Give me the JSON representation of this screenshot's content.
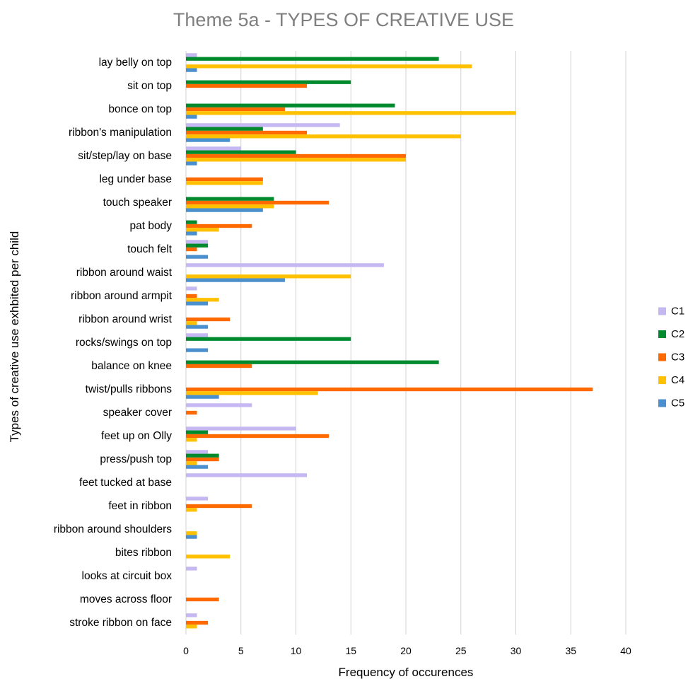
{
  "chart_data": {
    "type": "bar",
    "orientation": "horizontal",
    "title": "Theme 5a - TYPES OF CREATIVE USE",
    "xlabel": "Frequency of occurences",
    "ylabel": "Types of creative use exhbited per child",
    "xlim": [
      0,
      40
    ],
    "xticks": [
      0,
      5,
      10,
      15,
      20,
      25,
      30,
      35,
      40
    ],
    "grid": "vertical",
    "legend_position": "right",
    "categories": [
      "lay belly on top",
      "sit on top",
      "bonce on top",
      "ribbon's manipulation",
      "sit/step/lay on base",
      "leg under base",
      "touch speaker",
      "pat body",
      "touch felt",
      "ribbon around waist",
      "ribbon around armpit",
      "ribbon around wrist",
      "rocks/swings on top",
      "balance on knee",
      "twist/pulls ribbons",
      "speaker cover",
      "feet up on Olly",
      "press/push top",
      "feet tucked at base",
      "feet in ribbon",
      "ribbon around shoulders",
      "bites ribbon",
      "looks at circuit box",
      "moves across floor",
      "stroke ribbon on face"
    ],
    "series": [
      {
        "name": "C1",
        "color": "#c5b7f2",
        "values": [
          1,
          0,
          0,
          14,
          5,
          0,
          0,
          0,
          2,
          18,
          1,
          0,
          2,
          0,
          0,
          6,
          10,
          2,
          11,
          2,
          0,
          0,
          1,
          0,
          1
        ]
      },
      {
        "name": "C2",
        "color": "#008a2e",
        "values": [
          23,
          15,
          19,
          7,
          10,
          0,
          8,
          1,
          2,
          0,
          0,
          0,
          15,
          23,
          0,
          0,
          2,
          3,
          0,
          0,
          0,
          0,
          0,
          0,
          0
        ]
      },
      {
        "name": "C3",
        "color": "#ff6a00",
        "values": [
          0,
          11,
          9,
          11,
          20,
          7,
          13,
          6,
          1,
          0,
          1,
          4,
          0,
          6,
          37,
          1,
          13,
          3,
          0,
          6,
          0,
          0,
          0,
          3,
          2
        ]
      },
      {
        "name": "C4",
        "color": "#ffc000",
        "values": [
          26,
          0,
          30,
          25,
          20,
          7,
          8,
          3,
          0,
          15,
          3,
          1,
          0,
          0,
          12,
          0,
          1,
          1,
          0,
          1,
          1,
          4,
          0,
          0,
          1
        ]
      },
      {
        "name": "C5",
        "color": "#4a90cf",
        "values": [
          1,
          0,
          1,
          4,
          1,
          0,
          7,
          1,
          2,
          9,
          2,
          2,
          2,
          0,
          3,
          0,
          0,
          2,
          0,
          0,
          1,
          0,
          0,
          0,
          0
        ]
      }
    ]
  }
}
